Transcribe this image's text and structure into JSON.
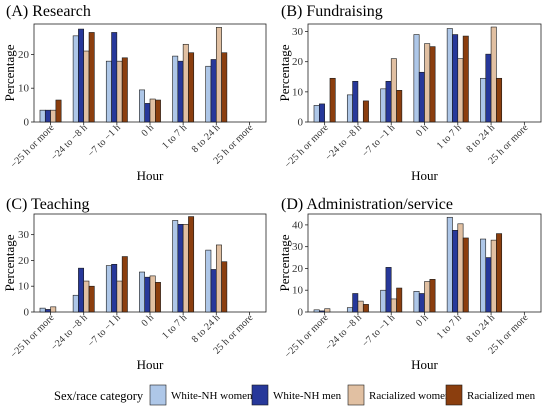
{
  "figure": {
    "legend_title": "Sex/race category",
    "colors": [
      "#aec7e8",
      "#27389a",
      "#e1c0a2",
      "#8b3e0e"
    ]
  },
  "chart_data": [
    {
      "type": "bar",
      "title": "(A) Research",
      "xlabel": "Hour",
      "ylabel": "Percentage",
      "categories": [
        "−25 h or more",
        "−24 to −8 h",
        "−7 to −1 h",
        "0 h",
        "1 to 7 h",
        "8 to 24 h",
        "25 h or more"
      ],
      "ylim": [
        0,
        29
      ],
      "yticks": [
        0,
        10,
        20
      ],
      "series": [
        {
          "name": "White-NH women",
          "values": [
            3.5,
            25.5,
            18,
            9.5,
            19.5,
            16.5,
            0
          ]
        },
        {
          "name": "White-NH men",
          "values": [
            3.5,
            27.5,
            26.5,
            5.5,
            18,
            18.5,
            0
          ]
        },
        {
          "name": "Racialized women",
          "values": [
            3.5,
            21,
            18,
            6.8,
            23,
            28,
            0
          ]
        },
        {
          "name": "Racialized men",
          "values": [
            6.5,
            26.5,
            19,
            6.5,
            20.5,
            20.5,
            0
          ]
        }
      ]
    },
    {
      "type": "bar",
      "title": "(B) Fundraising",
      "xlabel": "Hour",
      "ylabel": "Percentage",
      "categories": [
        "−25 h or more",
        "−24 to −8 h",
        "−7 to −1 h",
        "0 h",
        "1 to 7 h",
        "8 to 24 h",
        "25 h or more"
      ],
      "ylim": [
        0,
        32.5
      ],
      "yticks": [
        0,
        10,
        20,
        30
      ],
      "series": [
        {
          "name": "White-NH women",
          "values": [
            5.5,
            9,
            11,
            29,
            31,
            14.5,
            0
          ]
        },
        {
          "name": "White-NH men",
          "values": [
            6,
            13.5,
            13.5,
            16.5,
            29,
            22.5,
            0
          ]
        },
        {
          "name": "Racialized women",
          "values": [
            0,
            0,
            21,
            26,
            21,
            31.5,
            0
          ]
        },
        {
          "name": "Racialized men",
          "values": [
            14.5,
            7,
            10.5,
            25,
            28.5,
            14.5,
            0
          ]
        }
      ]
    },
    {
      "type": "bar",
      "title": "(C) Teaching",
      "xlabel": "Hour",
      "ylabel": "Percentage",
      "categories": [
        "−25 h or more",
        "−24 to −8 h",
        "−7 to −1 h",
        "0 h",
        "1 to 7 h",
        "8 to 24 h",
        "25 h or more"
      ],
      "ylim": [
        0,
        38
      ],
      "yticks": [
        0,
        10,
        20,
        30
      ],
      "series": [
        {
          "name": "White-NH women",
          "values": [
            1.5,
            6.5,
            18,
            15.5,
            35.5,
            24,
            0
          ]
        },
        {
          "name": "White-NH men",
          "values": [
            1,
            17,
            18.5,
            13.5,
            34,
            16.5,
            0
          ]
        },
        {
          "name": "Racialized women",
          "values": [
            2,
            12,
            12,
            14,
            34,
            26,
            0
          ]
        },
        {
          "name": "Racialized men",
          "values": [
            0,
            10,
            21.5,
            11.5,
            37,
            19.5,
            0
          ]
        }
      ]
    },
    {
      "type": "bar",
      "title": "(D) Administration/service",
      "xlabel": "Hour",
      "ylabel": "Percentage",
      "categories": [
        "−25 h or more",
        "−24 to −8 h",
        "−7 to −1 h",
        "0 h",
        "1 to 7 h",
        "8 to 24 h",
        "25 h or more"
      ],
      "ylim": [
        0,
        45
      ],
      "yticks": [
        0,
        10,
        20,
        30,
        40
      ],
      "series": [
        {
          "name": "White-NH women",
          "values": [
            1,
            2,
            10,
            9.5,
            43.5,
            33.5,
            0
          ]
        },
        {
          "name": "White-NH men",
          "values": [
            0.5,
            8.5,
            20.5,
            8.5,
            37.5,
            25,
            0
          ]
        },
        {
          "name": "Racialized women",
          "values": [
            1.5,
            5,
            6,
            14,
            40.5,
            33,
            0
          ]
        },
        {
          "name": "Racialized men",
          "values": [
            0,
            3.5,
            11,
            15,
            34,
            36,
            0
          ]
        }
      ]
    }
  ]
}
